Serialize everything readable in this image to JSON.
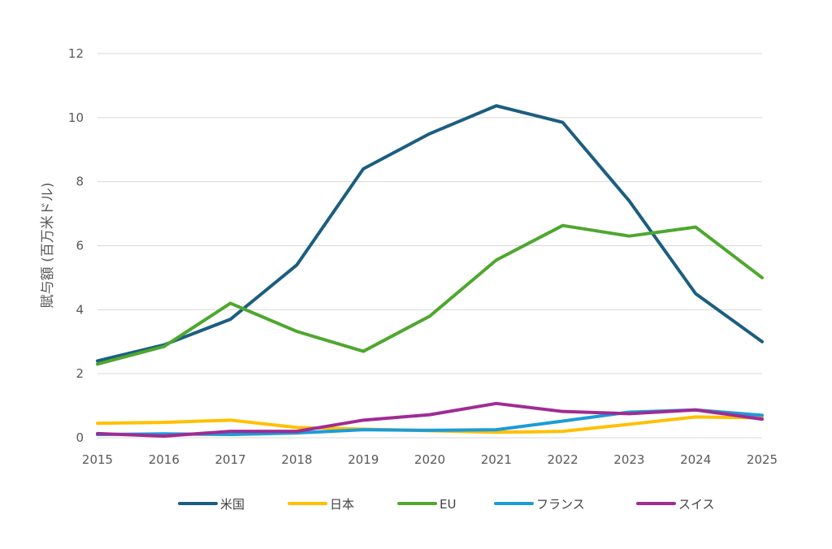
{
  "chart_data": {
    "type": "line",
    "ylabel": "賦与額 (百万米ドル)",
    "xlabel": "",
    "x": [
      "2015",
      "2016",
      "2017",
      "2018",
      "2019",
      "2020",
      "2021",
      "2022",
      "2023",
      "2024",
      "2025"
    ],
    "ylim": [
      0,
      12
    ],
    "yticks": [
      0,
      2,
      4,
      6,
      8,
      10,
      12
    ],
    "grid": true,
    "legend_position": "bottom",
    "series": [
      {
        "name": "米国",
        "color": "#1b5e80",
        "values": [
          2.4,
          2.9,
          3.7,
          5.4,
          8.4,
          9.5,
          10.37,
          9.85,
          7.4,
          4.5,
          3.0
        ]
      },
      {
        "name": "日本",
        "color": "#ffc000",
        "values": [
          0.45,
          0.48,
          0.55,
          0.32,
          0.27,
          0.22,
          0.17,
          0.2,
          0.42,
          0.65,
          0.62
        ]
      },
      {
        "name": "EU",
        "color": "#4ea72e",
        "values": [
          2.3,
          2.85,
          4.2,
          3.32,
          2.7,
          3.8,
          5.55,
          6.63,
          6.3,
          6.58,
          5.0
        ]
      },
      {
        "name": "フランス",
        "color": "#1c9bd7",
        "values": [
          0.1,
          0.12,
          0.1,
          0.15,
          0.25,
          0.23,
          0.25,
          0.52,
          0.8,
          0.87,
          0.7
        ]
      },
      {
        "name": "スイス",
        "color": "#a02b93",
        "values": [
          0.13,
          0.05,
          0.2,
          0.2,
          0.55,
          0.72,
          1.07,
          0.82,
          0.75,
          0.87,
          0.58
        ]
      }
    ]
  }
}
